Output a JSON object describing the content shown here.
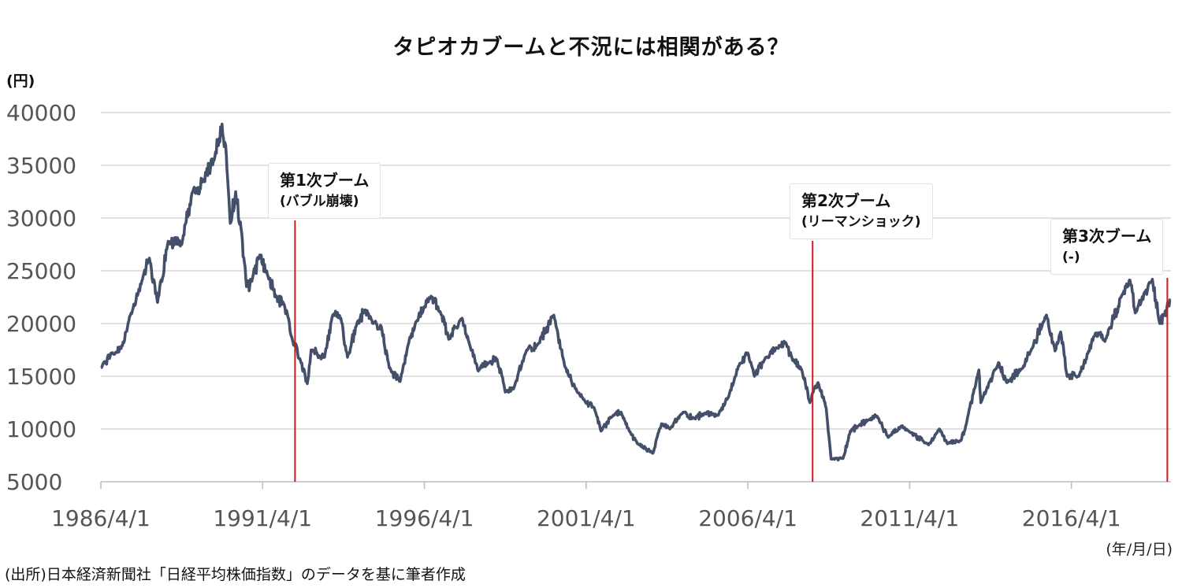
{
  "chart_data": {
    "type": "line",
    "title": "タピオカブームと不況には相関がある？",
    "ylabel": "(円)",
    "xlabel": "(年/月/日)",
    "source": "(出所)日本経済新聞社「日経平均株価指数」のデータを基に筆者作成",
    "ylim": [
      5000,
      40000
    ],
    "yticks": [
      5000,
      10000,
      15000,
      20000,
      25000,
      30000,
      35000,
      40000
    ],
    "xlim": [
      "1986-04-01",
      "2019-04-30"
    ],
    "xticks": [
      {
        "date": "1986-04-01",
        "label": "1986/4/1"
      },
      {
        "date": "1991-04-01",
        "label": "1991/4/1"
      },
      {
        "date": "1996-04-01",
        "label": "1996/4/1"
      },
      {
        "date": "2001-04-01",
        "label": "2001/4/1"
      },
      {
        "date": "2006-04-01",
        "label": "2006/4/1"
      },
      {
        "date": "2011-04-01",
        "label": "2011/4/1"
      },
      {
        "date": "2016-04-01",
        "label": "2016/4/1"
      }
    ],
    "grid": true,
    "line_color": "#44506a",
    "marker_color": "#d0191c",
    "series": [
      {
        "x": [
          "1986-04-01",
          "1986-08-01",
          "1986-12-01",
          "1987-04-01",
          "1987-08-01",
          "1987-10-01",
          "1988-01-01",
          "1988-05-01",
          "1988-10-01",
          "1989-02-01",
          "1989-06-01",
          "1989-10-01",
          "1989-12-29",
          "1990-02-15",
          "1990-04-01",
          "1990-06-01",
          "1990-08-01",
          "1990-10-01",
          "1990-12-01",
          "1991-03-01",
          "1991-06-01",
          "1991-09-01",
          "1991-12-01",
          "1992-03-01",
          "1992-06-01",
          "1992-08-18",
          "1992-10-01",
          "1993-03-01",
          "1993-06-01",
          "1993-09-01",
          "1993-11-15",
          "1994-03-01",
          "1994-06-01",
          "1994-09-01",
          "1994-12-01",
          "1995-03-01",
          "1995-07-01",
          "1995-10-01",
          "1996-01-01",
          "1996-06-15",
          "1996-10-01",
          "1997-01-01",
          "1997-06-01",
          "1997-09-01",
          "1997-12-01",
          "1998-04-01",
          "1998-07-01",
          "1998-10-01",
          "1999-01-01",
          "1999-06-01",
          "1999-10-01",
          "2000-04-01",
          "2000-08-01",
          "2000-12-01",
          "2001-03-01",
          "2001-07-01",
          "2001-09-15",
          "2002-02-01",
          "2002-05-01",
          "2002-08-01",
          "2002-11-01",
          "2003-04-25",
          "2003-08-01",
          "2003-11-01",
          "2004-04-01",
          "2004-08-01",
          "2004-12-01",
          "2005-05-01",
          "2005-09-01",
          "2005-12-30",
          "2006-04-01",
          "2006-06-15",
          "2006-10-01",
          "2007-02-15",
          "2007-06-01",
          "2007-08-20",
          "2007-12-01",
          "2008-03-01",
          "2008-06-01",
          "2008-09-01",
          "2008-10-27",
          "2009-03-10",
          "2009-06-01",
          "2009-09-01",
          "2010-01-01",
          "2010-04-01",
          "2010-08-01",
          "2011-01-01",
          "2011-04-01",
          "2011-11-01",
          "2012-03-01",
          "2012-06-01",
          "2012-11-01",
          "2013-01-01",
          "2013-05-22",
          "2013-06-13",
          "2013-12-30",
          "2014-04-01",
          "2014-10-01",
          "2014-12-30",
          "2015-06-24",
          "2015-09-29",
          "2015-12-01",
          "2016-02-12",
          "2016-06-24",
          "2016-12-30",
          "2017-04-14",
          "2017-11-07",
          "2018-01-23",
          "2018-03-23",
          "2018-10-02",
          "2018-12-25",
          "2019-02-01",
          "2019-04-25"
        ],
        "y": [
          15800,
          17200,
          17900,
          21500,
          24800,
          26200,
          22000,
          27800,
          27500,
          32500,
          33500,
          35500,
          38900,
          36000,
          29500,
          32500,
          29000,
          23500,
          24000,
          26500,
          24500,
          22500,
          21800,
          18500,
          16500,
          14300,
          17500,
          16800,
          20800,
          20500,
          16800,
          20000,
          21300,
          20000,
          19700,
          15800,
          14500,
          18000,
          20200,
          22600,
          21000,
          18500,
          20500,
          17800,
          15500,
          16300,
          16600,
          13500,
          13800,
          17500,
          18000,
          20800,
          16000,
          13800,
          12800,
          12000,
          9800,
          11300,
          11600,
          9800,
          8600,
          7700,
          10500,
          10000,
          11600,
          11000,
          11500,
          11300,
          13200,
          16200,
          17200,
          15000,
          16500,
          17700,
          18200,
          16500,
          15600,
          12500,
          14400,
          12000,
          7150,
          7200,
          9800,
          10300,
          10900,
          11200,
          9200,
          10300,
          9700,
          8500,
          10000,
          8600,
          8900,
          10500,
          15600,
          12500,
          16300,
          14400,
          15800,
          17400,
          20800,
          17400,
          19200,
          15000,
          15000,
          19100,
          18300,
          22900,
          24100,
          21000,
          24200,
          20000,
          20700,
          22200
        ]
      }
    ],
    "booms": [
      {
        "date": "1992-04-01",
        "name": "第1次ブーム",
        "note": "(バブル崩壊)"
      },
      {
        "date": "2008-04-01",
        "name": "第2次ブーム",
        "note": "(リーマンショック)"
      },
      {
        "date": "2019-03-20",
        "name": "第3次ブーム",
        "note": "(-)"
      }
    ]
  }
}
